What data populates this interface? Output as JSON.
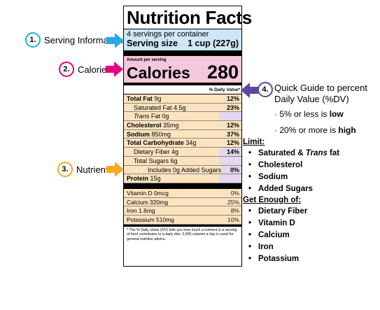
{
  "label": {
    "title": "Nutrition Facts",
    "servings": "4 servings per container",
    "serving_size_label": "Serving size",
    "serving_size_value": "1 cup (227g)",
    "amount_per_serving": "Amount per serving",
    "calories_label": "Calories",
    "calories_value": "280",
    "dv_header": "% Daily Value*",
    "nutrients": [
      {
        "name": "Total Fat",
        "amount": " 9g",
        "dv": "12%"
      },
      {
        "name": "Saturated Fat 4.5g",
        "amount": "",
        "dv": "23%"
      },
      {
        "name": "Trans",
        "amount": " Fat 0g",
        "dv": ""
      },
      {
        "name": "Cholesterol",
        "amount": " 35mg",
        "dv": "12%"
      },
      {
        "name": "Sodium",
        "amount": " 850mg",
        "dv": "37%"
      },
      {
        "name": "Total Carbohydrate",
        "amount": " 34g",
        "dv": "12%"
      },
      {
        "name": "Dietary Fiber 4g",
        "amount": "",
        "dv": "14%"
      },
      {
        "name": "Total Sugars 6g",
        "amount": "",
        "dv": ""
      },
      {
        "name": "Includes 0g Added Sugars",
        "amount": "",
        "dv": "0%"
      },
      {
        "name": "Protein",
        "amount": " 15g",
        "dv": ""
      }
    ],
    "vitamins": [
      {
        "name": "Vitamin D 0mcg",
        "dv": "0%"
      },
      {
        "name": "Calcium 320mg",
        "dv": "25%"
      },
      {
        "name": "Iron 1.6mg",
        "dv": "8%"
      },
      {
        "name": "Potassium 510mg",
        "dv": "10%"
      }
    ],
    "footnote": "* The % Daily Value (DV) tells you how much a nutrient in a serving of food contributes to a daily diet. 2,000 calories a day is used for general nutrition advice."
  },
  "callouts": [
    {
      "number": "1.",
      "text": "Serving Information",
      "color": "#29abe2"
    },
    {
      "number": "2.",
      "text": "Calories",
      "color": "#e6007e"
    },
    {
      "number": "3.",
      "text": "Nutrients",
      "color": "#f7a823"
    },
    {
      "number": "4.",
      "text": "",
      "color": "#5b4a9b"
    }
  ],
  "guide": {
    "title": "Quick Guide to percent Daily Value (%DV)",
    "low_prefix": "5% or less is ",
    "low_word": "low",
    "high_prefix": "20% or more is ",
    "high_word": "high",
    "limit_heading": "Limit:",
    "limit_items": [
      "Saturated & ",
      "Cholesterol",
      "Sodium",
      "Added Sugars"
    ],
    "limit_trans_word": "Trans",
    "limit_trans_suffix": " fat",
    "enough_heading": "Get Enough of:",
    "enough_items": [
      "Dietary Fiber",
      "Vitamin D",
      "Calcium",
      "Iron",
      "Potassium"
    ]
  }
}
